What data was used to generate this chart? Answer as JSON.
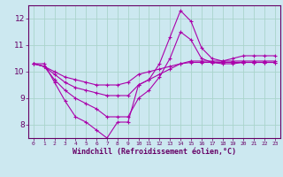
{
  "title": "",
  "xlabel": "Windchill (Refroidissement éolien,°C)",
  "ylabel": "",
  "background_color": "#cce8f0",
  "line_color": "#aa00aa",
  "grid_color": "#aad4cc",
  "ylim": [
    7.5,
    12.5
  ],
  "xlim": [
    -0.5,
    23.5
  ],
  "yticks": [
    8,
    9,
    10,
    11,
    12
  ],
  "xticks": [
    0,
    1,
    2,
    3,
    4,
    5,
    6,
    7,
    8,
    9,
    10,
    11,
    12,
    13,
    14,
    15,
    16,
    17,
    18,
    19,
    20,
    21,
    22,
    23
  ],
  "series": [
    [
      10.3,
      10.3,
      9.6,
      8.9,
      8.3,
      8.1,
      7.8,
      7.5,
      8.1,
      8.1,
      9.5,
      9.7,
      10.3,
      11.3,
      12.3,
      11.9,
      10.9,
      10.5,
      10.4,
      10.5,
      10.6,
      10.6,
      10.6,
      10.6
    ],
    [
      10.3,
      10.2,
      10.0,
      9.8,
      9.7,
      9.6,
      9.5,
      9.5,
      9.5,
      9.6,
      9.9,
      10.0,
      10.1,
      10.2,
      10.3,
      10.35,
      10.35,
      10.35,
      10.35,
      10.35,
      10.35,
      10.35,
      10.35,
      10.35
    ],
    [
      10.3,
      10.2,
      9.9,
      9.6,
      9.4,
      9.3,
      9.2,
      9.1,
      9.1,
      9.1,
      9.5,
      9.7,
      9.9,
      10.1,
      10.3,
      10.4,
      10.4,
      10.4,
      10.4,
      10.4,
      10.4,
      10.4,
      10.4,
      10.4
    ],
    [
      10.3,
      10.2,
      9.7,
      9.3,
      9.0,
      8.8,
      8.6,
      8.3,
      8.3,
      8.3,
      9.0,
      9.3,
      9.8,
      10.5,
      11.5,
      11.2,
      10.5,
      10.35,
      10.3,
      10.3,
      10.35,
      10.35,
      10.35,
      10.35
    ]
  ]
}
